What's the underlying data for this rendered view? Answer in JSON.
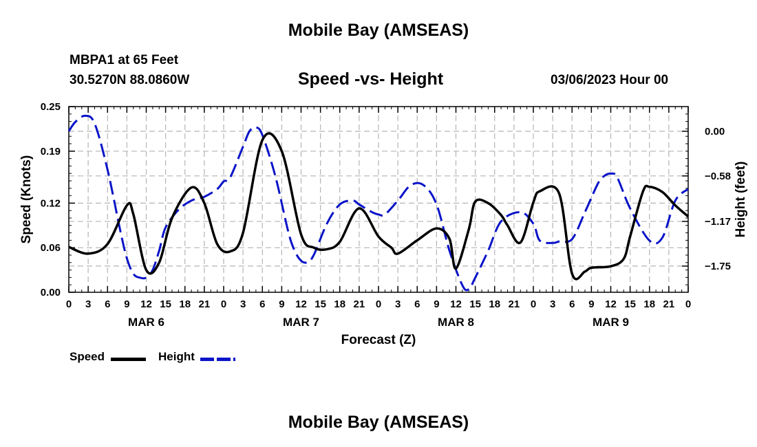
{
  "page": {
    "title": "Mobile Bay (AMSEAS)",
    "title_repeat": "Mobile Bay (AMSEAS)",
    "station": "MBPA1 at 65 Feet",
    "coordinates": "30.5270N  88.0860W",
    "subtitle": "Speed -vs- Height",
    "datetime": "03/06/2023 Hour 00"
  },
  "colors": {
    "speed": "#000000",
    "height": "#0a14c8",
    "grid": "#b4b4b4"
  },
  "chart_data": {
    "type": "line",
    "xlabel": "Forecast (Z)",
    "ylabel_left": "Speed (Knots)",
    "ylabel_right": "Height (feet)",
    "x_range_hours": [
      0,
      96
    ],
    "x_tick_step_hours": 3,
    "x_tick_labels": [
      "0",
      "3",
      "6",
      "9",
      "12",
      "15",
      "18",
      "21",
      "0",
      "3",
      "6",
      "9",
      "12",
      "15",
      "18",
      "21",
      "0",
      "3",
      "6",
      "9",
      "12",
      "15",
      "18",
      "21",
      "0",
      "3",
      "6",
      "9",
      "12",
      "15",
      "18",
      "21",
      "0"
    ],
    "day_labels": [
      {
        "label": "MAR 6",
        "hour": 12
      },
      {
        "label": "MAR 7",
        "hour": 36
      },
      {
        "label": "MAR 8",
        "hour": 60
      },
      {
        "label": "MAR 9",
        "hour": 84
      }
    ],
    "left_axis": {
      "range": [
        0,
        0.25
      ],
      "ticks": [
        0.0,
        0.06,
        0.12,
        0.19,
        0.25
      ],
      "tick_labels": [
        "0.00",
        "0.06",
        "0.12",
        "0.19",
        "0.25"
      ]
    },
    "right_axis": {
      "range": [
        -2.09,
        0.32
      ],
      "ticks": [
        0.0,
        -0.58,
        -1.17,
        -1.75
      ],
      "tick_labels": [
        "0.00",
        "−0.58",
        "−1.17",
        "−1.75"
      ]
    },
    "grid": true,
    "legend": {
      "placement": "bottom-left",
      "entries": [
        "Speed",
        "Height"
      ]
    },
    "series": [
      {
        "name": "Speed",
        "axis": "left",
        "style": "solid",
        "x": [
          0,
          3,
          6,
          9,
          10,
          12,
          14,
          16,
          19,
          21,
          23,
          25,
          27,
          30,
          33,
          36,
          38,
          40,
          42,
          45,
          48,
          50,
          51,
          54,
          57,
          59,
          60,
          62,
          63,
          65,
          67,
          68,
          70,
          72,
          73,
          76,
          78,
          80,
          81,
          84,
          86,
          87,
          89,
          90,
          92,
          94,
          96
        ],
        "values": [
          0.061,
          0.052,
          0.065,
          0.117,
          0.105,
          0.03,
          0.04,
          0.1,
          0.141,
          0.12,
          0.065,
          0.055,
          0.08,
          0.205,
          0.19,
          0.078,
          0.06,
          0.058,
          0.068,
          0.113,
          0.075,
          0.06,
          0.052,
          0.07,
          0.086,
          0.072,
          0.032,
          0.085,
          0.122,
          0.12,
          0.104,
          0.09,
          0.067,
          0.121,
          0.136,
          0.133,
          0.025,
          0.028,
          0.033,
          0.035,
          0.045,
          0.075,
          0.136,
          0.142,
          0.135,
          0.117,
          0.102
        ]
      },
      {
        "name": "Height",
        "axis": "right",
        "style": "dashed",
        "x": [
          0,
          1,
          2.5,
          4,
          6,
          8,
          9,
          10,
          11,
          12,
          13,
          14,
          15,
          17,
          19,
          21,
          23,
          24,
          25,
          27,
          28,
          29,
          30,
          32,
          34,
          35,
          36,
          37,
          38,
          40,
          42,
          44,
          45,
          47,
          48,
          49,
          51,
          53,
          55,
          57,
          59,
          61,
          62,
          63,
          65,
          67,
          70,
          72,
          73,
          75,
          76,
          78,
          80,
          82,
          83,
          84,
          85,
          87,
          90,
          92,
          94,
          96
        ],
        "values": [
          0.0,
          0.12,
          0.2,
          0.1,
          -0.5,
          -1.3,
          -1.65,
          -1.85,
          -1.9,
          -1.9,
          -1.8,
          -1.55,
          -1.25,
          -1.02,
          -0.9,
          -0.85,
          -0.75,
          -0.65,
          -0.6,
          -0.2,
          0.0,
          0.05,
          -0.05,
          -0.58,
          -1.3,
          -1.55,
          -1.68,
          -1.7,
          -1.6,
          -1.2,
          -0.95,
          -0.9,
          -0.95,
          -1.05,
          -1.08,
          -1.08,
          -0.9,
          -0.7,
          -0.7,
          -0.95,
          -1.55,
          -2.0,
          -2.05,
          -1.9,
          -1.55,
          -1.17,
          -1.05,
          -1.2,
          -1.42,
          -1.45,
          -1.43,
          -1.4,
          -1.05,
          -0.68,
          -0.58,
          -0.55,
          -0.6,
          -1.0,
          -1.42,
          -1.38,
          -0.9,
          -0.75
        ]
      }
    ]
  }
}
